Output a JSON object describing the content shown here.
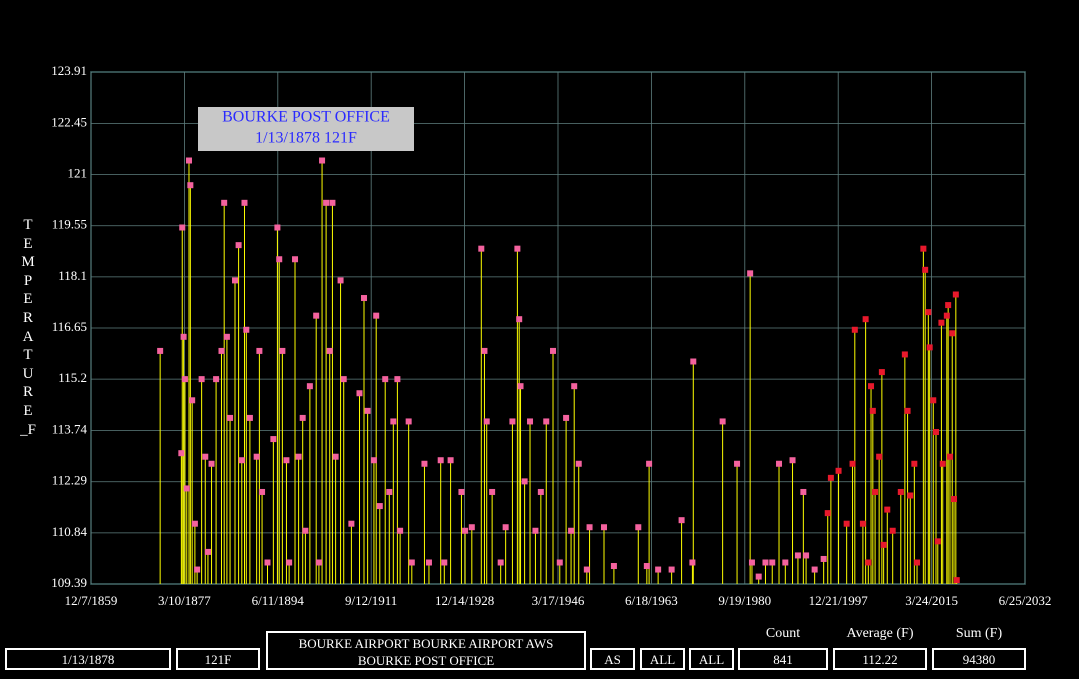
{
  "chart_data": {
    "type": "scatter",
    "tooltip": {
      "title": "BOURKE POST OFFICE",
      "text": "1/13/1878 121F"
    },
    "y_label": "TEMPERATURE_F",
    "xlim": [
      "12/7/1859",
      "6/25/2032"
    ],
    "xticks": [
      "12/7/1859",
      "3/10/1877",
      "6/11/1894",
      "9/12/1911",
      "12/14/1928",
      "3/17/1946",
      "6/18/1963",
      "9/19/1980",
      "12/21/1997",
      "3/24/2015",
      "6/25/2032"
    ],
    "ylim": [
      109.39,
      123.91
    ],
    "yticks": [
      109.39,
      110.84,
      112.29,
      113.74,
      115.2,
      116.65,
      118.1,
      119.55,
      121,
      122.45,
      123.91
    ],
    "grid": true,
    "stem_color": "#ffff00",
    "series": [
      {
        "color": "#f4629e",
        "x": [
          "9/15/1872",
          "8/15/1876",
          "10/15/1876",
          "1/15/1877",
          "4/15/1877",
          "8/15/1877",
          "1/13/1878",
          "4/15/1878",
          "8/15/1878",
          "2/15/1879",
          "7/15/1879",
          "5/15/1880",
          "1/15/1881",
          "7/15/1881",
          "3/15/1882",
          "1/15/1883",
          "1/15/1884",
          "7/15/1884",
          "1/15/1885",
          "8/15/1885",
          "7/15/1886",
          "3/15/1887",
          "10/15/1887",
          "4/15/1888",
          "8/15/1888",
          "4/15/1889",
          "7/15/1890",
          "1/15/1891",
          "7/15/1891",
          "7/15/1892",
          "8/15/1893",
          "5/15/1894",
          "9/15/1894",
          "4/15/1895",
          "1/15/1896",
          "7/15/1896",
          "8/15/1897",
          "4/15/1898",
          "1/15/1899",
          "7/15/1899",
          "5/15/1900",
          "7/15/1901",
          "1/15/1902",
          "8/15/1902",
          "5/15/1903",
          "1/15/1904",
          "7/15/1904",
          "2/15/1905",
          "1/15/1906",
          "8/15/1906",
          "1/15/1908",
          "7/15/1909",
          "5/15/1910",
          "1/15/1911",
          "3/15/1912",
          "8/15/1912",
          "4/15/1913",
          "4/15/1914",
          "1/15/1915",
          "10/15/1915",
          "7/15/1916",
          "1/15/1917",
          "8/15/1918",
          "3/15/1919",
          "7/15/1921",
          "5/15/1922",
          "7/15/1924",
          "3/15/1925",
          "5/15/1926",
          "5/15/1928",
          "1/15/1929",
          "4/15/1930",
          "1/15/1932",
          "8/15/1932",
          "1/15/1933",
          "1/15/1934",
          "8/15/1935",
          "7/15/1936",
          "10/15/1937",
          "9/15/1938",
          "1/15/1939",
          "4/15/1939",
          "1/15/1940",
          "1/15/1941",
          "1/15/1942",
          "1/15/1943",
          "1/15/1944",
          "4/15/1945",
          "7/15/1946",
          "9/15/1947",
          "8/15/1948",
          "3/15/1949",
          "1/15/1950",
          "7/15/1951",
          "1/15/1952",
          "9/15/1954",
          "7/15/1956",
          "1/15/1961",
          "8/15/1962",
          "1/15/1963",
          "9/15/1964",
          "3/15/1967",
          "1/15/1969",
          "1/15/1971",
          "3/15/1971",
          "8/15/1976",
          "4/15/1979",
          "9/15/1981",
          "1/15/1982",
          "4/15/1983",
          "7/15/1984",
          "10/15/1985",
          "1/15/1987",
          "3/15/1988",
          "7/15/1989",
          "7/15/1990",
          "7/15/1991",
          "1/15/1992",
          "8/15/1993",
          "4/15/1995"
        ],
        "values": [
          116.0,
          113.1,
          119.5,
          116.4,
          115.2,
          112.1,
          121.4,
          120.7,
          114.6,
          111.1,
          109.8,
          115.2,
          113.0,
          110.3,
          112.8,
          115.2,
          116.0,
          120.2,
          116.4,
          114.1,
          118.0,
          119.0,
          112.9,
          120.2,
          116.6,
          114.1,
          113.0,
          116.0,
          112.0,
          110.0,
          113.5,
          119.5,
          118.6,
          116.0,
          112.9,
          110.0,
          118.6,
          113.0,
          114.1,
          110.9,
          115.0,
          117.0,
          110.0,
          121.4,
          120.2,
          116.0,
          120.2,
          113.0,
          118.0,
          115.2,
          111.1,
          114.8,
          117.5,
          114.3,
          112.9,
          117.0,
          111.6,
          115.2,
          112.0,
          114.0,
          115.2,
          110.9,
          114.0,
          110.0,
          112.8,
          110.0,
          112.9,
          110.0,
          112.9,
          112.0,
          110.9,
          111.0,
          118.9,
          116.0,
          114.0,
          112.0,
          110.0,
          111.0,
          114.0,
          118.9,
          116.9,
          115.0,
          112.3,
          114.0,
          110.9,
          112.0,
          114.0,
          116.0,
          110.0,
          114.1,
          110.9,
          115.0,
          112.8,
          109.8,
          111.0,
          111.0,
          109.9,
          111.0,
          109.9,
          112.8,
          109.8,
          109.8,
          111.2,
          110.0,
          115.7,
          114.0,
          112.8,
          118.2,
          110.0,
          109.6,
          110.0,
          110.0,
          112.8,
          110.0,
          112.9,
          110.2,
          112.0,
          110.2,
          109.8,
          110.1
        ]
      },
      {
        "color": "#e8192c",
        "x": [
          "1/15/1996",
          "8/15/1996",
          "1/15/1998",
          "7/15/1999",
          "8/15/2000",
          "1/15/2001",
          "7/15/2002",
          "1/15/2003",
          "7/15/2003",
          "1/15/2004",
          "5/15/2004",
          "10/15/2004",
          "7/15/2005",
          "1/15/2006",
          "5/15/2006",
          "1/15/2007",
          "1/15/2008",
          "7/15/2009",
          "4/15/2010",
          "10/15/2010",
          "4/15/2011",
          "1/15/2012",
          "7/15/2012",
          "9/15/2013",
          "1/15/2014",
          "8/15/2014",
          "11/15/2014",
          "7/15/2015",
          "1/15/2016",
          "5/15/2016",
          "1/15/2017",
          "4/15/2017",
          "1/15/2018",
          "4/15/2018",
          "8/15/2018",
          "1/15/2019",
          "5/15/2019",
          "9/15/2019",
          "11/15/2019"
        ],
        "values": [
          111.4,
          112.4,
          112.6,
          111.1,
          112.8,
          116.6,
          111.1,
          116.9,
          110.0,
          115.0,
          114.3,
          112.0,
          113.0,
          115.4,
          110.5,
          111.5,
          110.9,
          112.0,
          115.9,
          114.3,
          111.9,
          112.8,
          110.0,
          118.9,
          118.3,
          117.1,
          116.1,
          114.6,
          113.7,
          110.6,
          116.8,
          112.8,
          117.0,
          117.3,
          113.0,
          116.5,
          111.8,
          117.6,
          109.5
        ]
      }
    ],
    "selected_date": "1/13/1878",
    "selected_value": "121F",
    "stations": [
      "BOURKE AIRPORT",
      "BOURKE AIRPORT AWS",
      "BOURKE POST OFFICE"
    ],
    "filters": [
      "AS",
      "ALL",
      "ALL"
    ],
    "summary": [
      {
        "label": "Count",
        "value": 841
      },
      {
        "label": "Average (F)",
        "value": 112.22
      },
      {
        "label": "Sum (F)",
        "value": 94380
      }
    ]
  }
}
